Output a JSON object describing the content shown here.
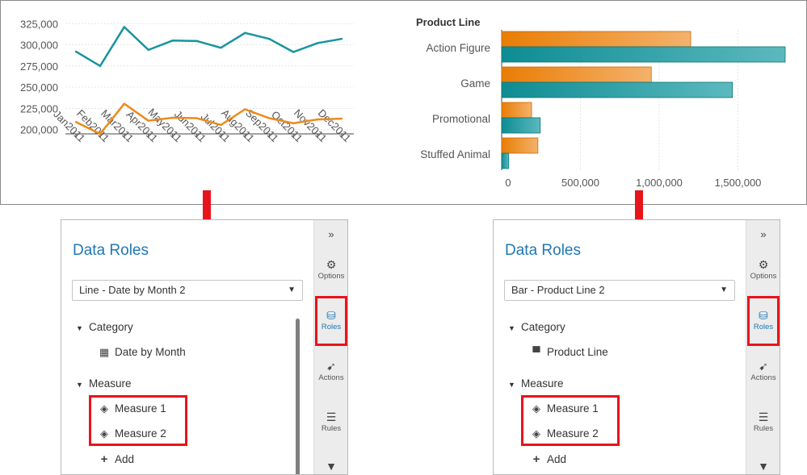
{
  "line_chart": {
    "y_ticks": [
      "325,000",
      "300,000",
      "275,000",
      "250,000",
      "225,000",
      "200,000"
    ],
    "months": [
      "Jan2011",
      "Feb2011",
      "Mar2011",
      "Apr2011",
      "May2011",
      "Jun2011",
      "Jul2011",
      "Aug2011",
      "Sep2011",
      "Oct2011",
      "Nov2011",
      "Dec2011"
    ],
    "colors": {
      "series1": "#17949c",
      "series2": "#ec8a1b"
    }
  },
  "bar_chart": {
    "axis_title": "Product Line",
    "x_ticks": [
      "0",
      "500,000",
      "1,000,000",
      "1,500,000"
    ],
    "colors": {
      "series1": "#ec8a1b",
      "series2": "#17949c"
    }
  },
  "chart_data": [
    {
      "type": "line",
      "x": [
        "Jan2011",
        "Feb2011",
        "Mar2011",
        "Apr2011",
        "May2011",
        "Jun2011",
        "Jul2011",
        "Aug2011",
        "Sep2011",
        "Oct2011",
        "Nov2011",
        "Dec2011"
      ],
      "series": [
        {
          "values": [
            292000,
            275000,
            321000,
            294000,
            305000,
            304500,
            296500,
            314000,
            307000,
            291500,
            302000,
            307000
          ]
        },
        {
          "values": [
            209000,
            195000,
            230500,
            210500,
            214000,
            213500,
            205500,
            224000,
            213500,
            207500,
            212000,
            213000
          ]
        }
      ],
      "ylim": [
        195000,
        330000
      ],
      "grid": true
    },
    {
      "type": "bar",
      "orientation": "horizontal",
      "categories": [
        "Action Figure",
        "Game",
        "Promotional",
        "Stuffed Animal"
      ],
      "series": [
        {
          "values": [
            1200000,
            950000,
            190000,
            230000
          ]
        },
        {
          "values": [
            1800000,
            1465000,
            245000,
            45000
          ]
        }
      ],
      "ylabel": "Product Line",
      "xlim": [
        0,
        1800000
      ],
      "grid": true
    }
  ],
  "panels": {
    "left": {
      "title": "Data Roles",
      "dropdown_value": "Line - Date by Month 2",
      "category_label": "Category",
      "category_item": "Date by Month",
      "measure_label": "Measure",
      "measures": [
        "Measure 1",
        "Measure 2"
      ],
      "add_label": "Add"
    },
    "right": {
      "title": "Data Roles",
      "dropdown_value": "Bar - Product Line 2",
      "category_label": "Category",
      "category_item": "Product Line",
      "measure_label": "Measure",
      "measures": [
        "Measure 1",
        "Measure 2"
      ],
      "add_label": "Add"
    },
    "sidebar": {
      "collapse": "»",
      "options": "Options",
      "roles": "Roles",
      "actions": "Actions",
      "rules": "Rules"
    }
  },
  "accent_color": "#1f78b4",
  "highlight_color": "#e8141b"
}
